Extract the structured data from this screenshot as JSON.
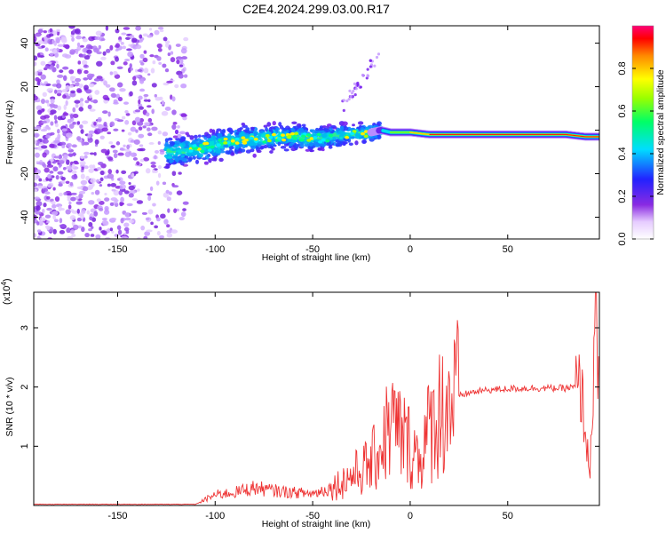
{
  "figure": {
    "title": "C2E4.2024.299.03.00.R17"
  },
  "chart_data": [
    {
      "type": "heatmap",
      "xlabel": "Height of straight line (km)",
      "ylabel": "Frequency (Hz)",
      "xlim": [
        -193,
        97
      ],
      "ylim": [
        -50,
        48
      ],
      "xticks": [
        -150,
        -100,
        -50,
        0,
        50
      ],
      "yticks": [
        40,
        20,
        0,
        -20,
        -40
      ],
      "ridge": {
        "x": [
          -125,
          -110,
          -100,
          -90,
          -80,
          -70,
          -60,
          -50,
          -40,
          -30,
          -20,
          -15,
          -10,
          0,
          10,
          20,
          30,
          40,
          50,
          60,
          70,
          80,
          90,
          95
        ],
        "frequency": [
          -10,
          -9,
          -7,
          -5,
          -4,
          -3,
          -3,
          -4,
          -3,
          -2,
          -1,
          0,
          -1,
          -1,
          -2,
          -2,
          -2,
          -2,
          -2,
          -2,
          -2,
          -2,
          -3,
          -3
        ]
      },
      "noise_region_x": [
        -193,
        -115
      ],
      "colorbar": {
        "label": "Normalized spectral amplitude",
        "ticks": [
          "0.0",
          "0.2",
          "0.4",
          "0.6",
          "0.8"
        ],
        "range": [
          0,
          1
        ]
      }
    },
    {
      "type": "line",
      "xlabel": "Height of straight line (km)",
      "ylabel": "SNR (10 * v/v)",
      "y_multiplier": "x10^4",
      "xlim": [
        -193,
        97
      ],
      "ylim": [
        0,
        3.6
      ],
      "xticks": [
        -150,
        -100,
        -50,
        0,
        50
      ],
      "yticks": [
        1,
        2,
        3
      ],
      "color": "#ee3333",
      "series": [
        {
          "x": [
            -193,
            -160,
            -130,
            -110,
            -105,
            -100,
            -90,
            -80,
            -70,
            -60,
            -50,
            -40,
            -30,
            -20,
            -15,
            -10,
            -5,
            0,
            5,
            10,
            15,
            20,
            25,
            30,
            40,
            50,
            60,
            70,
            80,
            85,
            88,
            90,
            92,
            94,
            95,
            96,
            97
          ],
          "values": [
            0.02,
            0.02,
            0.02,
            0.02,
            0.1,
            0.18,
            0.22,
            0.3,
            0.25,
            0.22,
            0.2,
            0.3,
            0.5,
            0.7,
            1.0,
            1.4,
            1.2,
            1.0,
            0.8,
            1.3,
            1.6,
            1.75,
            1.85,
            1.9,
            1.95,
            1.97,
            1.98,
            1.98,
            1.98,
            2.0,
            1.9,
            1.2,
            0.5,
            2.2,
            3.4,
            2.0,
            1.9
          ]
        }
      ]
    }
  ]
}
